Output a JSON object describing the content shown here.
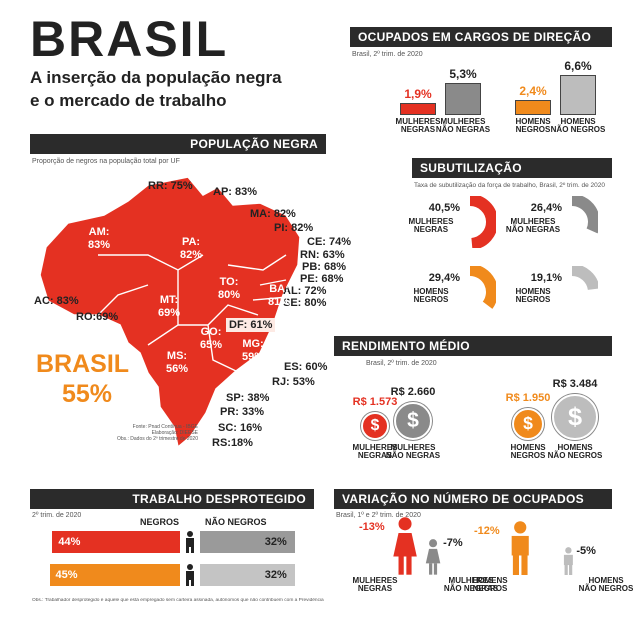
{
  "header": {
    "title": "BRASIL",
    "subtitle_line1": "A inserção da população negra",
    "subtitle_line2": "e o mercado de trabalho"
  },
  "populacao": {
    "title": "POPULAÇÃO NEGRA",
    "caption": "Proporção de negros na população total por UF",
    "brasil_label": "BRASIL",
    "brasil_value": "55%",
    "source1": "Fonte: Pnad Contínua - IBGE",
    "source2": "Elaboração: DIEESE",
    "source3": "Obs.: Dados do 2º trimestre de 2020",
    "states": [
      {
        "text": "RR: 75%"
      },
      {
        "text": "AP: 83%"
      },
      {
        "text": "MA: 82%"
      },
      {
        "text": "PI: 82%"
      },
      {
        "text": "CE: 74%"
      },
      {
        "text": "RN: 63%"
      },
      {
        "text": "PB: 68%"
      },
      {
        "text": "PE: 68%"
      },
      {
        "text": "AL: 72%"
      },
      {
        "text": "SE: 80%"
      },
      {
        "text": "AC: 83%"
      },
      {
        "text": "RO:69%"
      },
      {
        "text": "ES: 60%"
      },
      {
        "text": "RJ: 53%"
      },
      {
        "text": "SP: 38%"
      },
      {
        "text": "PR: 33%"
      },
      {
        "text": "SC: 16%"
      },
      {
        "text": "RS:18%"
      },
      {
        "text": "DF: 61%"
      },
      {
        "text": "AM:",
        "text2": "83%"
      },
      {
        "text": "PA:",
        "text2": "82%"
      },
      {
        "text": "TO:",
        "text2": "80%"
      },
      {
        "text": "BA:",
        "text2": "81%"
      },
      {
        "text": "MT:",
        "text2": "69%"
      },
      {
        "text": "GO:",
        "text2": "65%"
      },
      {
        "text": "MG:",
        "text2": "59%"
      },
      {
        "text": "MS:",
        "text2": "56%"
      }
    ]
  },
  "ocupados": {
    "title": "OCUPADOS EM CARGOS DE DIREÇÃO",
    "caption": "Brasil, 2º trim. de 2020",
    "groups": [
      {
        "value": "1,9%",
        "label1": "MULHERES",
        "label2": "NEGRAS",
        "color": "#e43122"
      },
      {
        "value": "5,3%",
        "label1": "MULHERES",
        "label2": "NÃO NEGRAS",
        "color": "#8a8a8a"
      },
      {
        "value": "2,4%",
        "label1": "HOMENS",
        "label2": "NEGROS",
        "color": "#f08a1c"
      },
      {
        "value": "6,6%",
        "label1": "HOMENS",
        "label2": "NÃO NEGROS",
        "color": "#bdbdbd"
      }
    ]
  },
  "subutilizacao": {
    "title": "SUBUTILIZAÇÃO",
    "caption": "Taxa de subutilização da força de trabalho, Brasil, 2º trim. de 2020",
    "groups": [
      {
        "value": "40,5%",
        "label1": "MULHERES",
        "label2": "NEGRAS",
        "color": "#e43122",
        "frac": 0.405
      },
      {
        "value": "26,4%",
        "label1": "MULHERES",
        "label2": "NÃO NEGRAS",
        "color": "#8a8a8a",
        "frac": 0.264
      },
      {
        "value": "29,4%",
        "label1": "HOMENS",
        "label2": "NEGROS",
        "color": "#f08a1c",
        "frac": 0.294
      },
      {
        "value": "19,1%",
        "label1": "HOMENS",
        "label2": "NEGROS",
        "color": "#bdbdbd",
        "frac": 0.191
      }
    ]
  },
  "rendimento": {
    "title": "RENDIMENTO MÉDIO",
    "caption": "Brasil, 2º trim. de 2020",
    "groups": [
      {
        "value": "R$ 1.573",
        "label1": "MULHERES",
        "label2": "NEGRAS",
        "color": "#e43122"
      },
      {
        "value": "R$ 2.660",
        "label1": "MULHERES",
        "label2": "NÃO NEGRAS",
        "color": "#8a8a8a"
      },
      {
        "value": "R$ 1.950",
        "label1": "HOMENS",
        "label2": "NEGROS",
        "color": "#f08a1c"
      },
      {
        "value": "R$ 3.484",
        "label1": "HOMENS",
        "label2": "NÃO NEGROS",
        "color": "#bdbdbd"
      }
    ],
    "symbol": "$"
  },
  "trabalho": {
    "title": "TRABALHO DESPROTEGIDO",
    "caption": "2º trim. de 2020",
    "col1": "NEGROS",
    "col2": "NÃO NEGROS",
    "rows": [
      {
        "left": "44%",
        "right": "32%",
        "left_color": "#e43122",
        "right_color": "#9a9a9a"
      },
      {
        "left": "45%",
        "right": "32%",
        "left_color": "#f08a1c",
        "right_color": "#c4c4c4"
      }
    ],
    "note": "Obs.: Trabalhador desprotegido é aquele que está empregado sem carteira assinada, autônomos que não contribuem com a Previdência"
  },
  "variacao": {
    "title": "VARIAÇÃO NO NÚMERO DE OCUPADOS",
    "caption": "Brasil, 1º e 2º trim. de 2020",
    "groups": [
      {
        "value": "-13%",
        "label1": "MULHERES",
        "label2": "NEGRAS",
        "color": "#e43122"
      },
      {
        "value": "-7%",
        "label1": "MULHERES",
        "label2": "NÃO NEGRAS",
        "color": "#8a8a8a"
      },
      {
        "value": "-12%",
        "label1": "HOMENS",
        "label2": "NEGROS",
        "color": "#f08a1c"
      },
      {
        "value": "-5%",
        "label1": "HOMENS",
        "label2": "NÃO NEGROS",
        "color": "#bdbdbd"
      }
    ]
  },
  "chart_data": [
    {
      "type": "bar",
      "title": "OCUPADOS EM CARGOS DE DIREÇÃO",
      "categories": [
        "MULHERES NEGRAS",
        "MULHERES NÃO NEGRAS",
        "HOMENS NEGROS",
        "HOMENS NÃO NEGROS"
      ],
      "values": [
        1.9,
        5.3,
        2.4,
        6.6
      ]
    },
    {
      "type": "pie",
      "title": "SUBUTILIZAÇÃO",
      "categories": [
        "MULHERES NEGRAS",
        "MULHERES NÃO NEGRAS",
        "HOMENS NEGROS",
        "HOMENS NEGROS"
      ],
      "values": [
        40.5,
        26.4,
        29.4,
        19.1
      ]
    },
    {
      "type": "bar",
      "title": "RENDIMENTO MÉDIO",
      "categories": [
        "MULHERES NEGRAS",
        "MULHERES NÃO NEGRAS",
        "HOMENS NEGROS",
        "HOMENS NÃO NEGROS"
      ],
      "values": [
        1573,
        2660,
        1950,
        3484
      ]
    },
    {
      "type": "bar",
      "title": "TRABALHO DESPROTEGIDO",
      "categories": [
        "NEGROS",
        "NÃO NEGROS"
      ],
      "series": [
        {
          "values": [
            44,
            32
          ]
        },
        {
          "values": [
            45,
            32
          ]
        }
      ]
    },
    {
      "type": "bar",
      "title": "VARIAÇÃO NO NÚMERO DE OCUPADOS",
      "categories": [
        "MULHERES NEGRAS",
        "MULHERES NÃO NEGRAS",
        "HOMENS NEGROS",
        "HOMENS NÃO NEGROS"
      ],
      "values": [
        -13,
        -7,
        -12,
        -5
      ]
    }
  ]
}
